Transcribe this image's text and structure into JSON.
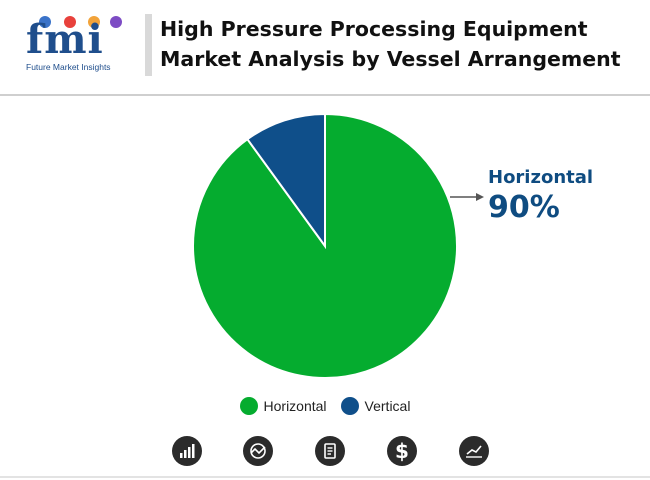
{
  "brand": {
    "logo_letters": "fmi",
    "tagline": "Future Market Insights",
    "dot_colors": [
      "#3a73c9",
      "#e8413c",
      "#f2a33a",
      "#7d4cc4"
    ]
  },
  "title": "High Pressure Processing Equipment Market Analysis by Vessel Arrangement",
  "callout": {
    "label": "Horizontal",
    "value": "90%",
    "color": "#0f4c81"
  },
  "legend": [
    {
      "label": "Horizontal",
      "color": "#05ac2f"
    },
    {
      "label": "Vertical",
      "color": "#0f4f8a"
    }
  ],
  "footer_icons": [
    "bar-chart-icon",
    "globe-chart-icon",
    "report-icon",
    "dollar-icon",
    "trend-chart-icon"
  ],
  "chart_data": {
    "type": "pie",
    "title": "High Pressure Processing Equipment Market Analysis by Vessel Arrangement",
    "categories": [
      "Horizontal",
      "Vertical"
    ],
    "values": [
      90,
      10
    ],
    "units": "%",
    "colors": [
      "#05ac2f",
      "#0f4f8a"
    ],
    "start_angle_deg": 0,
    "direction": "clockwise",
    "legend_position": "bottom-center"
  }
}
